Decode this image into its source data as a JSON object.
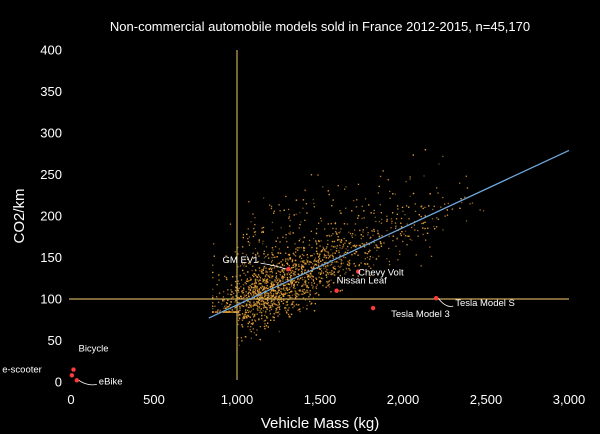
{
  "chart_data": {
    "type": "scatter",
    "title": "Non-commercial automobile models sold in France 2012-2015, n=45,170",
    "xlabel": "Vehicle Mass (kg)",
    "ylabel": "CO2/km",
    "xlim": [
      0,
      3000
    ],
    "ylim": [
      0,
      400
    ],
    "x_ticks": [
      {
        "value": 0,
        "label": "0"
      },
      {
        "value": 500,
        "label": "500"
      },
      {
        "value": 1000,
        "label": "1,000"
      },
      {
        "value": 1500,
        "label": "1,500"
      },
      {
        "value": 2000,
        "label": "2,000"
      },
      {
        "value": 2500,
        "label": "2,500"
      },
      {
        "value": 3000,
        "label": "3,000"
      }
    ],
    "y_ticks": [
      {
        "value": 0,
        "label": "0"
      },
      {
        "value": 50,
        "label": "50"
      },
      {
        "value": 100,
        "label": "100"
      },
      {
        "value": 150,
        "label": "150"
      },
      {
        "value": 200,
        "label": "200"
      },
      {
        "value": 250,
        "label": "250"
      },
      {
        "value": 300,
        "label": "300"
      },
      {
        "value": 350,
        "label": "350"
      },
      {
        "value": 400,
        "label": "400"
      }
    ],
    "grid": false,
    "reference_lines": {
      "vertical_x": 1000,
      "horizontal_y": 100,
      "color": "#c8a85a"
    },
    "trendline": {
      "x": [
        830,
        3000
      ],
      "y": [
        77,
        279
      ],
      "color": "#6fa8dc"
    },
    "point_color": "#e8a33a",
    "highlight_color": "#ff3b3b",
    "highlighted": [
      {
        "label": "Bicycle",
        "x": 15,
        "y": 15
      },
      {
        "label": "e-scooter",
        "x": 5,
        "y": 8
      },
      {
        "label": "eBike",
        "x": 35,
        "y": 2
      },
      {
        "label": "GM EV1",
        "x": 1310,
        "y": 136
      },
      {
        "label": "Chevy Volt",
        "x": 1730,
        "y": 133
      },
      {
        "label": "Nissan Leaf",
        "x": 1600,
        "y": 110
      },
      {
        "label": "Tesla Model S",
        "x": 2200,
        "y": 101
      },
      {
        "label": "Tesla Model 3",
        "x": 1820,
        "y": 89
      }
    ]
  }
}
